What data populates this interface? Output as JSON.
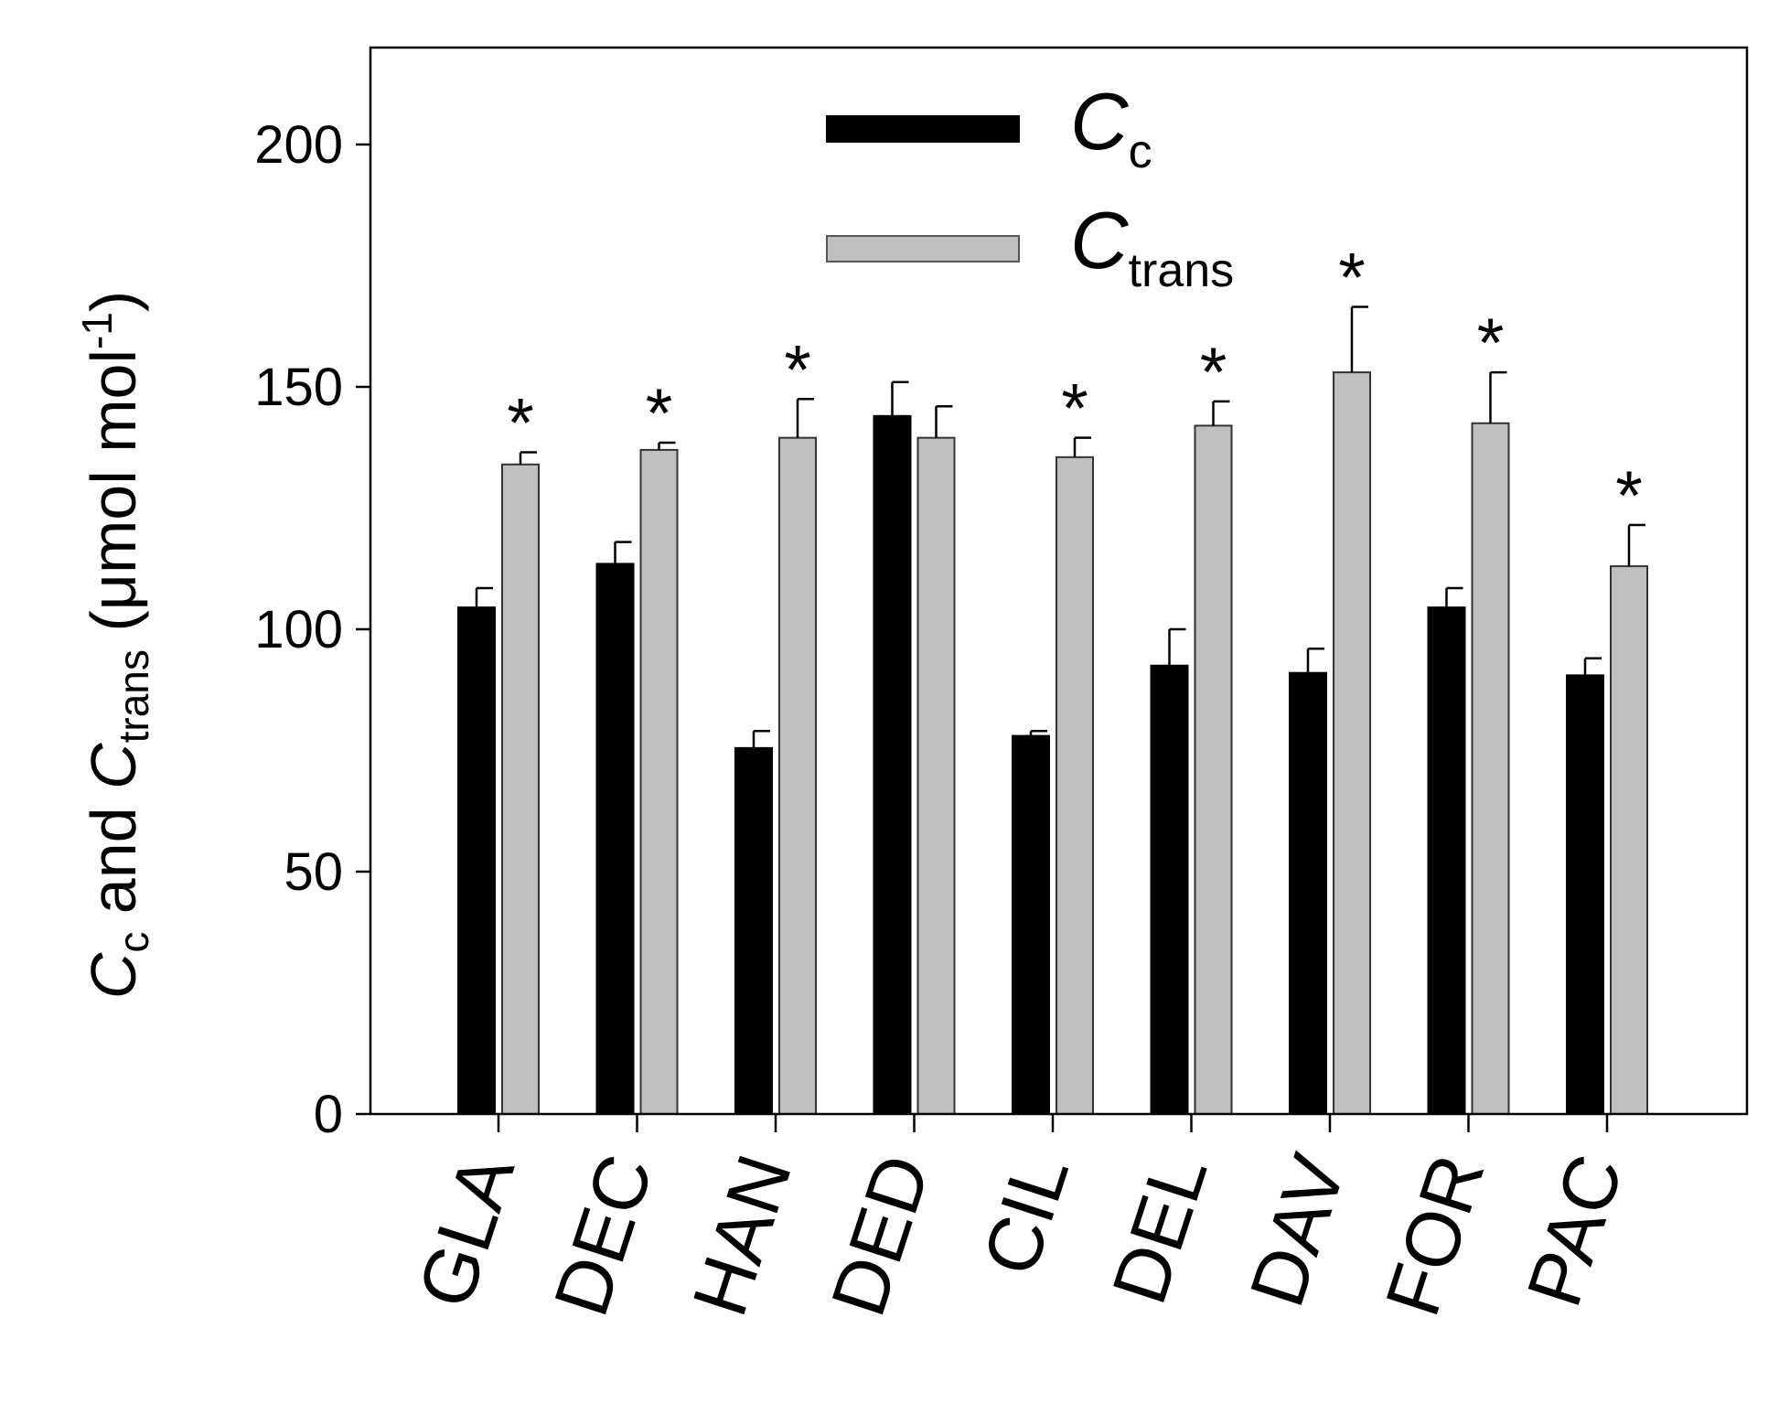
{
  "chart_data": {
    "type": "bar",
    "categories": [
      "GLA",
      "DEC",
      "HAN",
      "DED",
      "CIL",
      "DEL",
      "DAV",
      "FOR",
      "PAC"
    ],
    "series": [
      {
        "name": "Cc",
        "legend_main": "C",
        "legend_sub": "c",
        "color": "#000000",
        "values": [
          104.5,
          113.5,
          75.5,
          144,
          78,
          92.5,
          91,
          104.5,
          90.5
        ],
        "errors": [
          4,
          4.5,
          3.5,
          7,
          1,
          7.5,
          5,
          4,
          3.5
        ],
        "significant": [
          false,
          false,
          false,
          false,
          false,
          false,
          false,
          false,
          false
        ]
      },
      {
        "name": "Ctrans",
        "legend_main": "C",
        "legend_sub": "trans",
        "color": "#c0c0c0",
        "values": [
          134,
          137,
          139.5,
          139.5,
          135.5,
          142,
          153,
          142.5,
          113
        ],
        "errors": [
          2.5,
          1.5,
          8,
          6.5,
          4,
          5,
          13.5,
          10.5,
          8.5
        ],
        "significant": [
          true,
          true,
          true,
          false,
          true,
          true,
          true,
          true,
          true
        ]
      }
    ],
    "significance_marker": "*",
    "ylim": [
      0,
      220
    ],
    "yticks": [
      "0",
      "50",
      "100",
      "150",
      "200"
    ],
    "ylabel": {
      "p1": "C",
      "p1_sub": "c",
      "p2": " and ",
      "p3": "C",
      "p3_sub": "trans",
      "p4": " (μmol mol",
      "p4_sup": "-1",
      "p5": ")"
    },
    "legend_position": "top-center",
    "grid": false
  }
}
